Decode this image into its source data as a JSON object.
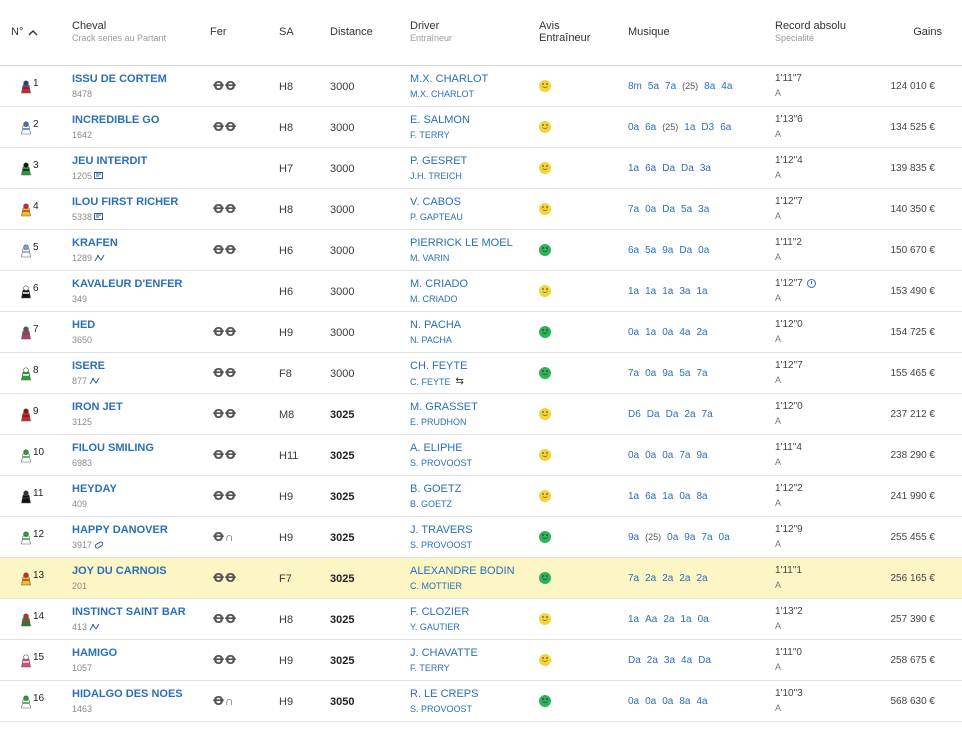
{
  "header": {
    "num": "N°",
    "sort_icon": "chevron-up-icon",
    "cheval": "Cheval",
    "cheval_sub": "Crack series au Partant",
    "fer": "Fer",
    "sa": "SA",
    "distance": "Distance",
    "driver": "Driver",
    "driver_sub": "Entraîneur",
    "avis_1": "Avis",
    "avis_2": "Entraîneur",
    "musique": "Musique",
    "record": "Record absolu",
    "record_sub": "Spécialité",
    "gains": "Gains"
  },
  "colors": {
    "link": "#2b6fb8",
    "highlight": "#fcf6c4",
    "happy": "#2fb35a",
    "neutral": "#f3d43a"
  },
  "rows": [
    {
      "num": "1",
      "horse": "ISSU DE CORTEM",
      "sub": "8478",
      "icon": "",
      "fer": "ꝊꝊ",
      "sa": "H8",
      "dist": "3000",
      "bold": false,
      "driver": "M.X. CHARLOT",
      "trainer": "M.X. CHARLOT",
      "swap": false,
      "avis": "y",
      "mus": [
        "8m",
        "5a",
        "7a",
        "(25)",
        "8a",
        "4a"
      ],
      "rec": "1'11\"7",
      "clock": false,
      "spec": "A",
      "gains": "124 010 €",
      "colors": [
        "#d4242a",
        "#1f3f8f"
      ],
      "hl": false
    },
    {
      "num": "2",
      "horse": "INCREDIBLE GO",
      "sub": "1642",
      "icon": "",
      "fer": "ꝊꝊ",
      "sa": "H8",
      "dist": "3000",
      "bold": false,
      "driver": "E. SALMON",
      "trainer": "F. TERRY",
      "swap": false,
      "avis": "y",
      "mus": [
        "0a",
        "6a",
        "(25)",
        "1a",
        "D3",
        "6a"
      ],
      "rec": "1'13\"6",
      "clock": false,
      "spec": "A",
      "gains": "134 525 €",
      "colors": [
        "#ffffff",
        "#3b6fc4"
      ],
      "hl": false
    },
    {
      "num": "3",
      "horse": "JEU INTERDIT",
      "sub": "1205",
      "icon": "flag",
      "fer": "",
      "sa": "H7",
      "dist": "3000",
      "bold": false,
      "driver": "P. GESRET",
      "trainer": "J.H. TREICH",
      "swap": false,
      "avis": "y",
      "mus": [
        "1a",
        "6a",
        "Da",
        "Da",
        "3a"
      ],
      "rec": "1'12\"4",
      "clock": false,
      "spec": "A",
      "gains": "139 835 €",
      "colors": [
        "#2a9a3a",
        "#111111"
      ],
      "hl": false
    },
    {
      "num": "4",
      "horse": "ILOU FIRST RICHER",
      "sub": "5338",
      "icon": "flag",
      "fer": "ꝊꝊ",
      "sa": "H8",
      "dist": "3000",
      "bold": false,
      "driver": "V. CABOS",
      "trainer": "P. GAPTEAU",
      "swap": false,
      "avis": "y",
      "mus": [
        "7a",
        "0a",
        "Da",
        "5a",
        "3a"
      ],
      "rec": "1'12\"7",
      "clock": false,
      "spec": "A",
      "gains": "140 350 €",
      "colors": [
        "#f0c020",
        "#d4242a"
      ],
      "hl": false
    },
    {
      "num": "5",
      "horse": "KRAFEN",
      "sub": "1289",
      "icon": "pedigree",
      "fer": "ꝊꝊ",
      "sa": "H6",
      "dist": "3000",
      "bold": false,
      "driver": "PIERRICK LE MOEL",
      "trainer": "M. VARIN",
      "swap": false,
      "avis": "g",
      "mus": [
        "6a",
        "5a",
        "9a",
        "Da",
        "0a"
      ],
      "rec": "1'11\"2",
      "clock": false,
      "spec": "A",
      "gains": "150 670 €",
      "colors": [
        "#ffffff",
        "#7aa0d8"
      ],
      "hl": false
    },
    {
      "num": "6",
      "horse": "KAVALEUR D'ENFER",
      "sub": "349",
      "icon": "",
      "fer": "",
      "sa": "H6",
      "dist": "3000",
      "bold": false,
      "driver": "M. CRIADO",
      "trainer": "M. CRIADO",
      "swap": false,
      "avis": "y",
      "mus": [
        "1a",
        "1a",
        "1a",
        "3a",
        "1a"
      ],
      "rec": "1'12\"7",
      "clock": true,
      "spec": "A",
      "gains": "153 490 €",
      "colors": [
        "#111111",
        "#ffffff"
      ],
      "hl": false
    },
    {
      "num": "7",
      "horse": "HED",
      "sub": "3650",
      "icon": "",
      "fer": "ꝊꝊ",
      "sa": "H9",
      "dist": "3000",
      "bold": false,
      "driver": "N. PACHA",
      "trainer": "N. PACHA",
      "swap": false,
      "avis": "g",
      "mus": [
        "0a",
        "1a",
        "0a",
        "4a",
        "2a"
      ],
      "rec": "1'12\"0",
      "clock": false,
      "spec": "A",
      "gains": "154 725 €",
      "colors": [
        "#b04060",
        "#555555"
      ],
      "hl": false
    },
    {
      "num": "8",
      "horse": "ISERE",
      "sub": "877",
      "icon": "pedigree",
      "fer": "ꝊꝊ",
      "sa": "F8",
      "dist": "3000",
      "bold": false,
      "driver": "CH. FEYTE",
      "trainer": "C. FEYTE",
      "swap": true,
      "avis": "g",
      "mus": [
        "7a",
        "0a",
        "9a",
        "5a",
        "7a"
      ],
      "rec": "1'12\"7",
      "clock": false,
      "spec": "A",
      "gains": "155 465 €",
      "colors": [
        "#2aa03a",
        "#ffffff"
      ],
      "hl": false
    },
    {
      "num": "9",
      "horse": "IRON JET",
      "sub": "3125",
      "icon": "",
      "fer": "ꝊꝊ",
      "sa": "M8",
      "dist": "3025",
      "bold": true,
      "driver": "M. GRASSET",
      "trainer": "E. PRUDHON",
      "swap": false,
      "avis": "y",
      "mus": [
        "D6",
        "Da",
        "Da",
        "2a",
        "7a"
      ],
      "rec": "1'12\"0",
      "clock": false,
      "spec": "A",
      "gains": "237 212 €",
      "colors": [
        "#d4242a",
        "#8a1010"
      ],
      "hl": false
    },
    {
      "num": "10",
      "horse": "FILOU SMILING",
      "sub": "6983",
      "icon": "",
      "fer": "ꝊꝊ",
      "sa": "H11",
      "dist": "3025",
      "bold": true,
      "driver": "A. ELIPHE",
      "trainer": "S. PROVOOST",
      "swap": false,
      "avis": "y",
      "mus": [
        "0a",
        "0a",
        "0a",
        "7a",
        "9a"
      ],
      "rec": "1'11\"4",
      "clock": false,
      "spec": "A",
      "gains": "238 290 €",
      "colors": [
        "#ffffff",
        "#2a9a3a"
      ],
      "hl": false
    },
    {
      "num": "11",
      "horse": "HEYDAY",
      "sub": "409",
      "icon": "",
      "fer": "ꝊꝊ",
      "sa": "H9",
      "dist": "3025",
      "bold": true,
      "driver": "B. GOETZ",
      "trainer": "B. GOETZ",
      "swap": false,
      "avis": "y",
      "mus": [
        "1a",
        "6a",
        "1a",
        "0a",
        "8a"
      ],
      "rec": "1'12\"2",
      "clock": false,
      "spec": "A",
      "gains": "241 990 €",
      "colors": [
        "#111111",
        "#333333"
      ],
      "hl": false
    },
    {
      "num": "12",
      "horse": "HAPPY DANOVER",
      "sub": "3917",
      "icon": "pill",
      "fer": "Ꝋ∩",
      "sa": "H9",
      "dist": "3025",
      "bold": true,
      "driver": "J. TRAVERS",
      "trainer": "S. PROVOOST",
      "swap": false,
      "avis": "g",
      "mus": [
        "9a",
        "(25)",
        "0a",
        "9a",
        "7a",
        "0a"
      ],
      "rec": "1'12\"9",
      "clock": false,
      "spec": "A",
      "gains": "255 455 €",
      "colors": [
        "#ffffff",
        "#2a9a3a"
      ],
      "hl": false
    },
    {
      "num": "13",
      "horse": "JOY DU CARNOIS",
      "sub": "201",
      "icon": "",
      "fer": "ꝊꝊ",
      "sa": "F7",
      "dist": "3025",
      "bold": true,
      "driver": "ALEXANDRE BODIN",
      "trainer": "C. MOTTIER",
      "swap": false,
      "avis": "g",
      "mus": [
        "7a",
        "2a",
        "2a",
        "2a",
        "2a"
      ],
      "rec": "1'11\"1",
      "clock": false,
      "spec": "A",
      "gains": "256 165 €",
      "colors": [
        "#f0c020",
        "#d4242a"
      ],
      "hl": true
    },
    {
      "num": "14",
      "horse": "INSTINCT SAINT BAR",
      "sub": "413",
      "icon": "pedigree",
      "fer": "ꝊꝊ",
      "sa": "H8",
      "dist": "3025",
      "bold": true,
      "driver": "F. CLOZIER",
      "trainer": "Y. GAUTIER",
      "swap": false,
      "avis": "y",
      "mus": [
        "1a",
        "Aa",
        "2a",
        "1a",
        "0a"
      ],
      "rec": "1'13\"2",
      "clock": false,
      "spec": "A",
      "gains": "257 390 €",
      "colors": [
        "#2a7a2a",
        "#d4242a"
      ],
      "hl": false
    },
    {
      "num": "15",
      "horse": "HAMIGO",
      "sub": "1057",
      "icon": "",
      "fer": "ꝊꝊ",
      "sa": "H9",
      "dist": "3025",
      "bold": true,
      "driver": "J. CHAVATTE",
      "trainer": "F. TERRY",
      "swap": false,
      "avis": "y",
      "mus": [
        "Da",
        "2a",
        "3a",
        "4a",
        "Da"
      ],
      "rec": "1'11\"0",
      "clock": false,
      "spec": "A",
      "gains": "258 675 €",
      "colors": [
        "#e84a7a",
        "#ffffff"
      ],
      "hl": false
    },
    {
      "num": "16",
      "horse": "HIDALGO DES NOES",
      "sub": "1463",
      "icon": "",
      "fer": "Ꝋ∩",
      "sa": "H9",
      "dist": "3050",
      "bold": true,
      "driver": "R. LE CREPS",
      "trainer": "S. PROVOOST",
      "swap": false,
      "avis": "g",
      "mus": [
        "0a",
        "0a",
        "0a",
        "8a",
        "4a"
      ],
      "rec": "1'10\"3",
      "clock": false,
      "spec": "A",
      "gains": "568 630 €",
      "colors": [
        "#ffffff",
        "#2a9a3a"
      ],
      "hl": false
    }
  ]
}
